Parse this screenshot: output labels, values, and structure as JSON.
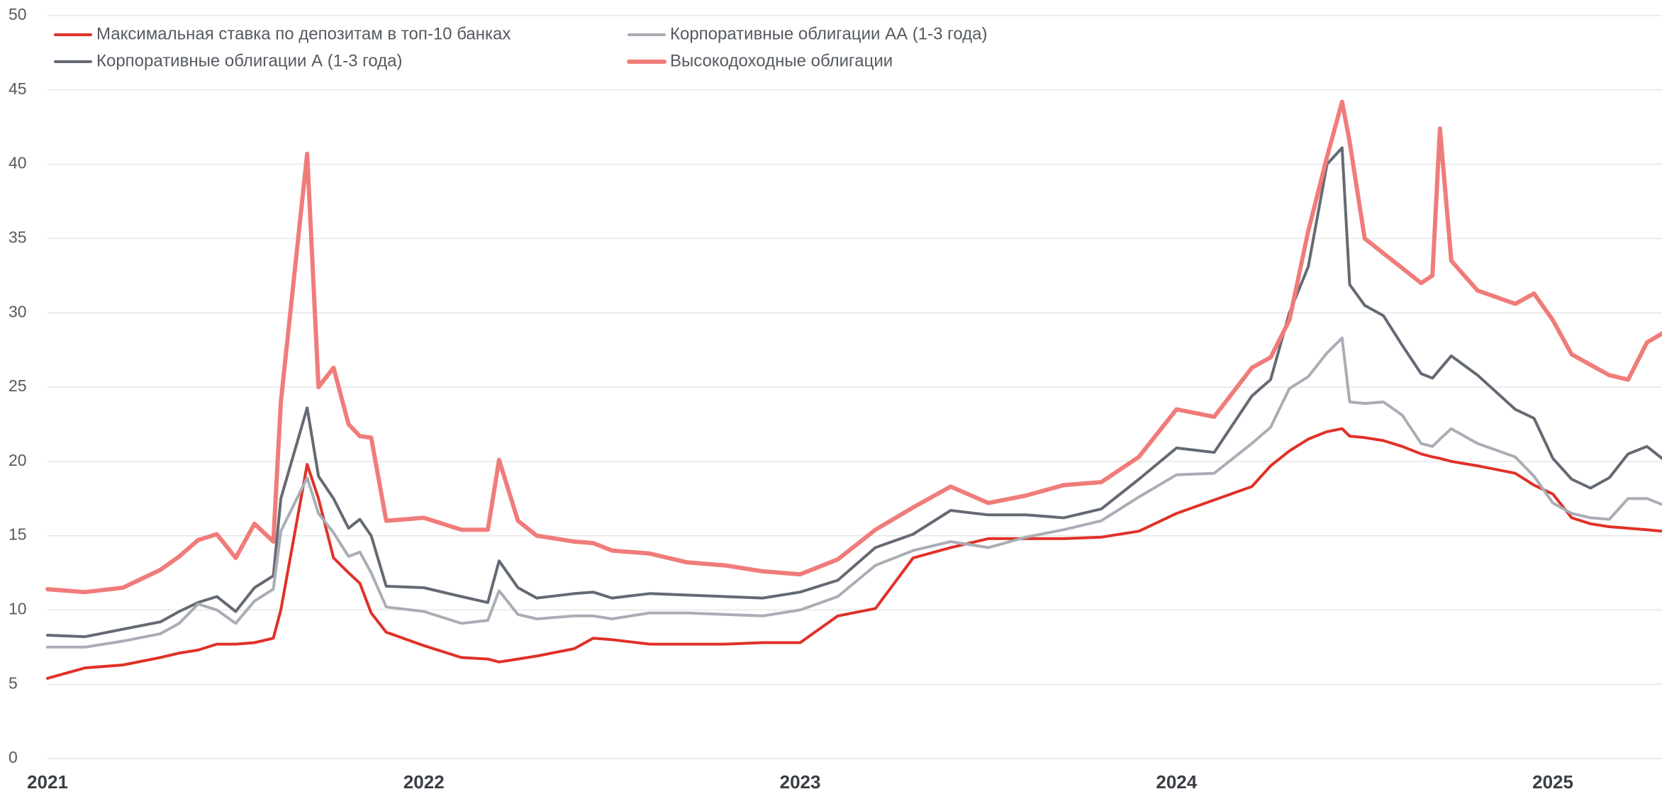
{
  "chart_data": {
    "type": "line",
    "x": [
      2021.0,
      2021.1,
      2021.2,
      2021.3,
      2021.35,
      2021.4,
      2021.45,
      2021.5,
      2021.55,
      2021.6,
      2021.62,
      2021.69,
      2021.72,
      2021.76,
      2021.8,
      2021.83,
      2021.86,
      2021.9,
      2022.0,
      2022.1,
      2022.17,
      2022.2,
      2022.25,
      2022.3,
      2022.4,
      2022.45,
      2022.5,
      2022.6,
      2022.7,
      2022.8,
      2022.9,
      2023.0,
      2023.1,
      2023.2,
      2023.3,
      2023.4,
      2023.5,
      2023.6,
      2023.7,
      2023.8,
      2023.9,
      2024.0,
      2024.1,
      2024.2,
      2024.25,
      2024.3,
      2024.35,
      2024.4,
      2024.44,
      2024.46,
      2024.5,
      2024.55,
      2024.6,
      2024.65,
      2024.68,
      2024.7,
      2024.73,
      2024.8,
      2024.9,
      2024.95,
      2025.0,
      2025.05,
      2025.1,
      2025.15,
      2025.2,
      2025.25,
      2025.29
    ],
    "series": [
      {
        "name": "Максимальная ставка по депозитам в топ-10 банках",
        "color": "#e03127",
        "width": 4,
        "values": [
          5.4,
          6.1,
          6.3,
          6.8,
          7.1,
          7.3,
          7.7,
          7.7,
          7.8,
          8.1,
          10,
          19.8,
          17.5,
          13.5,
          12.5,
          11.8,
          9.8,
          8.5,
          7.6,
          6.8,
          6.7,
          6.5,
          6.7,
          6.9,
          7.4,
          8.1,
          8.0,
          7.7,
          7.7,
          7.7,
          7.8,
          7.8,
          9.6,
          10.1,
          13.5,
          14.2,
          14.8,
          14.8,
          14.8,
          14.9,
          15.3,
          16.5,
          17.4,
          18.3,
          19.7,
          20.7,
          21.5,
          22.0,
          22.2,
          21.7,
          21.6,
          21.4,
          21.0,
          20.5,
          20.3,
          20.2,
          20.0,
          19.7,
          19.2,
          18.4,
          17.8,
          16.2,
          15.8,
          15.6,
          15.5,
          15.4,
          15.3
        ]
      },
      {
        "name": "Корпоративные облигации А (1-3 года)",
        "color": "#646a73",
        "width": 4,
        "values": [
          8.3,
          8.2,
          8.7,
          9.2,
          9.9,
          10.5,
          10.9,
          9.9,
          11.5,
          12.3,
          17.5,
          23.6,
          19,
          17.5,
          15.5,
          16.1,
          15,
          11.6,
          11.5,
          10.9,
          10.5,
          13.3,
          11.5,
          10.8,
          11.1,
          11.2,
          10.8,
          11.1,
          11.0,
          10.9,
          10.8,
          11.2,
          12,
          14.2,
          15.1,
          16.7,
          16.4,
          16.4,
          16.2,
          16.8,
          18.8,
          20.9,
          20.6,
          24.4,
          25.5,
          30,
          33.1,
          40,
          41.1,
          31.9,
          30.5,
          29.8,
          27.8,
          25.9,
          25.6,
          26.2,
          27.1,
          25.8,
          23.5,
          22.9,
          20.2,
          18.8,
          18.2,
          18.9,
          20.5,
          21.0,
          20.2
        ]
      },
      {
        "name": "Корпоративные облигации АА (1-3 года)",
        "color": "#a9adb5",
        "width": 4,
        "values": [
          7.5,
          7.5,
          7.9,
          8.4,
          9.1,
          10.4,
          10.0,
          9.1,
          10.6,
          11.4,
          15.3,
          18.9,
          16.5,
          15.2,
          13.6,
          13.9,
          12.5,
          10.2,
          9.9,
          9.1,
          9.3,
          11.3,
          9.7,
          9.4,
          9.6,
          9.6,
          9.4,
          9.8,
          9.8,
          9.7,
          9.6,
          10.0,
          10.9,
          13,
          14.0,
          14.6,
          14.2,
          14.9,
          15.4,
          16.0,
          17.6,
          19.1,
          19.2,
          21.2,
          22.3,
          24.9,
          25.7,
          27.3,
          28.3,
          24.0,
          23.9,
          24.0,
          23.1,
          21.2,
          21.0,
          21.5,
          22.2,
          21.2,
          20.3,
          19.0,
          17.2,
          16.5,
          16.2,
          16.1,
          17.5,
          17.5,
          17.1
        ]
      },
      {
        "name": "Высокодоходные облигации",
        "color": "#f07c7a",
        "width": 6,
        "values": [
          11.4,
          11.2,
          11.5,
          12.7,
          13.6,
          14.7,
          15.1,
          13.5,
          15.8,
          14.6,
          24,
          40.7,
          25,
          26.3,
          22.5,
          21.7,
          21.6,
          16,
          16.2,
          15.4,
          15.4,
          20.1,
          16,
          15,
          14.6,
          14.5,
          14.0,
          13.8,
          13.2,
          13.0,
          12.6,
          12.4,
          13.4,
          15.4,
          16.9,
          18.3,
          17.2,
          17.7,
          18.4,
          18.6,
          20.3,
          23.5,
          23.0,
          26.3,
          27.0,
          29.5,
          35.5,
          40.5,
          44.2,
          41.5,
          35,
          34,
          33,
          32,
          32.5,
          42.4,
          33.5,
          31.5,
          30.6,
          31.3,
          29.5,
          27.2,
          26.5,
          25.8,
          25.5,
          28,
          28.6
        ]
      }
    ],
    "xlim": [
      2021,
      2025.29
    ],
    "xticks": [
      2021,
      2022,
      2023,
      2024,
      2025
    ],
    "ylim": [
      0,
      50
    ],
    "yticks": [
      0,
      5,
      10,
      15,
      20,
      25,
      30,
      35,
      40,
      45,
      50
    ],
    "grid": true,
    "legend": "top-left"
  }
}
